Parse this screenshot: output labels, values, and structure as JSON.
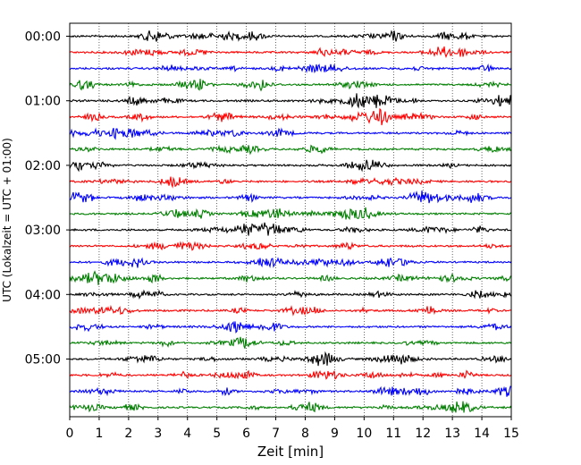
{
  "chart_data": {
    "type": "line",
    "title": "",
    "xlabel": "Zeit  [min]",
    "ylabel": "UTC (Lokalzeit = UTC + 01:00)",
    "xlim": [
      0,
      15
    ],
    "x_ticks": [
      0,
      1,
      2,
      3,
      4,
      5,
      6,
      7,
      8,
      9,
      10,
      11,
      12,
      13,
      14,
      15
    ],
    "y_ticks": [
      "00:00",
      "01:00",
      "02:00",
      "03:00",
      "04:00",
      "05:00"
    ],
    "trace_count": 24,
    "trace_interval_min": 15,
    "trace_color_cycle": [
      "#000000",
      "#ff0000",
      "#0000ff",
      "#007f00"
    ],
    "grid": "vertical dotted at each minute",
    "legend": "none"
  }
}
